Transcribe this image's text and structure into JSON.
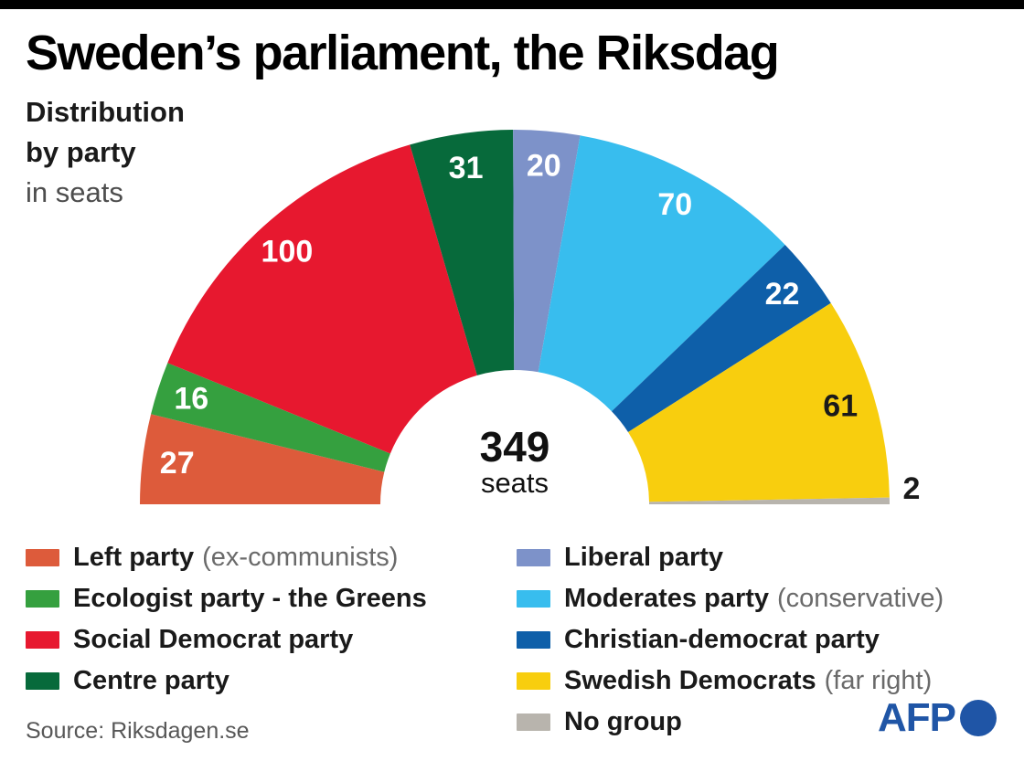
{
  "header": {
    "title": "Sweden’s parliament, the Riksdag",
    "subtitle_lines": [
      "Distribution",
      "by party",
      "in seats"
    ]
  },
  "chart_data": {
    "type": "half-donut",
    "title": "Sweden’s parliament, the Riksdag — distribution by party in seats",
    "orientation": "semicircle, left to right",
    "total_seats": 349,
    "center_label": {
      "value": "349",
      "unit": "seats"
    },
    "segments": [
      {
        "party": "Left party",
        "qualifier": "(ex-communists)",
        "seats": 27,
        "color": "#dd5b3b",
        "label_color": "#ffffff"
      },
      {
        "party": "Ecologist party - the Greens",
        "qualifier": "",
        "seats": 16,
        "color": "#35a03f",
        "label_color": "#ffffff"
      },
      {
        "party": "Social Democrat party",
        "qualifier": "",
        "seats": 100,
        "color": "#e7182f",
        "label_color": "#ffffff"
      },
      {
        "party": "Centre party",
        "qualifier": "",
        "seats": 31,
        "color": "#076a3b",
        "label_color": "#ffffff"
      },
      {
        "party": "Liberal party",
        "qualifier": "",
        "seats": 20,
        "color": "#7d92c9",
        "label_color": "#ffffff"
      },
      {
        "party": "Moderates party",
        "qualifier": "(conservative)",
        "seats": 70,
        "color": "#38bdee",
        "label_color": "#ffffff"
      },
      {
        "party": "Christian-democrat party",
        "qualifier": "",
        "seats": 22,
        "color": "#0e5fa9",
        "label_color": "#ffffff"
      },
      {
        "party": "Swedish Democrats",
        "qualifier": "(far right)",
        "seats": 61,
        "color": "#f8ce0e",
        "label_color": "#1a1a1a"
      },
      {
        "party": "No group",
        "qualifier": "",
        "seats": 2,
        "color": "#b8b4ad",
        "label_color": "#1a1a1a",
        "label_outside": true
      }
    ],
    "legend_position": "bottom, two columns"
  },
  "footer": {
    "source_label": "Source: Riksdagen.se",
    "afp_label": "AFP"
  }
}
